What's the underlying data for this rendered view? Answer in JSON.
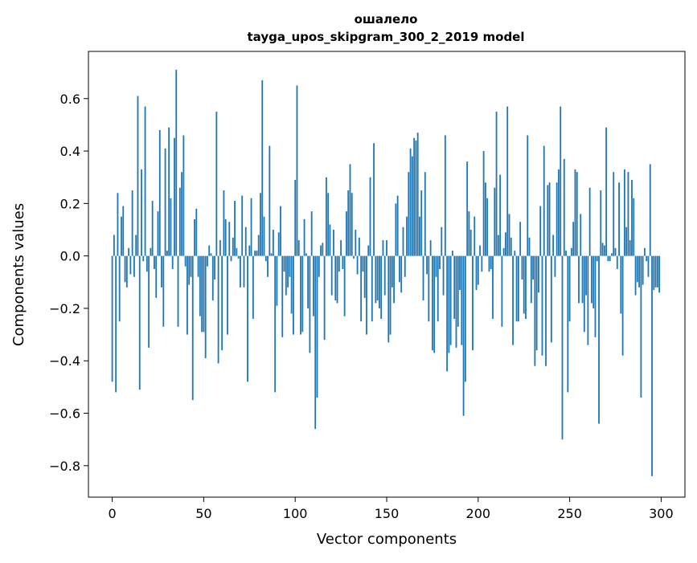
{
  "chart_data": {
    "type": "bar",
    "title": "ошалело",
    "subtitle": "tayga_upos_skipgram_300_2_2019 model",
    "xlabel": "Vector components",
    "ylabel": "Components values",
    "xlim": [
      -13,
      313
    ],
    "ylim": [
      -0.92,
      0.78
    ],
    "xticks": [
      0,
      50,
      100,
      150,
      200,
      250,
      300
    ],
    "xtick_labels": [
      "0",
      "50",
      "100",
      "150",
      "200",
      "250",
      "300"
    ],
    "yticks": [
      -0.8,
      -0.6,
      -0.4,
      -0.2,
      0.0,
      0.2,
      0.4,
      0.6
    ],
    "ytick_labels": [
      "−0.8",
      "−0.6",
      "−0.4",
      "−0.2",
      "0.0",
      "0.2",
      "0.4",
      "0.6"
    ],
    "grid": false,
    "bar_color": "#1f77b4",
    "x_start": 0,
    "values": [
      -0.48,
      0.08,
      -0.52,
      0.24,
      -0.25,
      0.15,
      0.19,
      -0.1,
      -0.12,
      0.03,
      -0.07,
      0.25,
      -0.08,
      0.08,
      0.61,
      -0.51,
      0.33,
      -0.02,
      0.57,
      -0.06,
      -0.35,
      0.03,
      0.21,
      -0.05,
      -0.16,
      0.17,
      0.48,
      -0.12,
      -0.27,
      0.41,
      0.02,
      0.49,
      0.22,
      -0.05,
      0.45,
      0.71,
      -0.27,
      0.26,
      0.32,
      0.46,
      -0.04,
      -0.3,
      -0.11,
      -0.08,
      -0.55,
      0.14,
      0.18,
      -0.08,
      -0.23,
      -0.29,
      -0.29,
      -0.39,
      -0.04,
      0.04,
      0.01,
      -0.17,
      -0.09,
      0.55,
      -0.41,
      0.06,
      -0.36,
      0.25,
      0.14,
      -0.3,
      0.13,
      -0.02,
      0.07,
      0.21,
      0.03,
      -0.01,
      -0.12,
      0.23,
      -0.12,
      0.11,
      -0.48,
      0.04,
      0.22,
      -0.24,
      0.02,
      0.02,
      0.08,
      0.24,
      0.67,
      0.15,
      -0.02,
      -0.08,
      0.42,
      0.01,
      0.1,
      -0.52,
      -0.19,
      0.09,
      0.19,
      -0.31,
      -0.06,
      -0.15,
      -0.12,
      -0.08,
      -0.22,
      -0.3,
      0.29,
      0.65,
      0.06,
      -0.3,
      -0.29,
      0.14,
      0.01,
      -0.2,
      -0.37,
      0.17,
      -0.23,
      -0.66,
      -0.54,
      -0.08,
      0.04,
      0.05,
      -0.32,
      0.3,
      0.24,
      0.12,
      -0.15,
      0.1,
      -0.17,
      -0.18,
      -0.06,
      0.06,
      -0.05,
      -0.23,
      0.17,
      0.25,
      0.35,
      0.24,
      -0.01,
      0.1,
      -0.07,
      0.07,
      -0.25,
      -0.06,
      -0.16,
      -0.3,
      0.04,
      0.3,
      -0.25,
      0.43,
      -0.18,
      -0.17,
      -0.2,
      -0.24,
      0.06,
      -0.15,
      0.06,
      -0.33,
      -0.3,
      -0.12,
      -0.18,
      0.2,
      0.23,
      -0.1,
      -0.14,
      0.11,
      -0.08,
      0.15,
      0.32,
      0.41,
      0.38,
      0.45,
      0.44,
      0.47,
      0.15,
      0.25,
      -0.17,
      0.32,
      -0.07,
      -0.25,
      0.06,
      -0.36,
      -0.37,
      -0.08,
      -0.25,
      -0.05,
      0.11,
      -0.15,
      0.46,
      -0.44,
      -0.37,
      -0.34,
      0.02,
      -0.24,
      -0.35,
      -0.27,
      -0.13,
      -0.34,
      -0.61,
      -0.48,
      0.36,
      0.17,
      0.1,
      -0.36,
      0.15,
      -0.13,
      -0.11,
      0.04,
      -0.06,
      0.4,
      0.28,
      0.22,
      -0.06,
      -0.05,
      -0.24,
      0.26,
      0.55,
      0.08,
      0.31,
      -0.27,
      0.03,
      0.09,
      0.57,
      0.16,
      0.07,
      -0.34,
      0.02,
      -0.25,
      -0.25,
      0.13,
      -0.09,
      -0.22,
      -0.24,
      0.46,
      0.07,
      -0.18,
      -0.09,
      -0.42,
      -0.36,
      -0.14,
      0.19,
      -0.38,
      0.42,
      -0.42,
      0.27,
      0.28,
      -0.33,
      0.08,
      -0.08,
      0.28,
      0.33,
      0.57,
      -0.7,
      0.37,
      0.02,
      -0.52,
      -0.25,
      0.03,
      0.13,
      0.33,
      0.32,
      -0.18,
      0.16,
      -0.18,
      -0.29,
      -0.15,
      -0.34,
      0.26,
      -0.18,
      -0.2,
      -0.31,
      -0.02,
      -0.64,
      0.25,
      0.05,
      0.04,
      0.49,
      -0.02,
      -0.02,
      0.01,
      0.32,
      0.03,
      -0.05,
      0.28,
      -0.22,
      -0.38,
      0.33,
      0.11,
      0.32,
      0.06,
      0.29,
      0.22,
      -0.15,
      -0.1,
      -0.12,
      -0.54,
      -0.11,
      0.03,
      -0.02,
      -0.08,
      0.35,
      -0.84,
      -0.13,
      -0.12,
      -0.12,
      -0.14
    ]
  }
}
